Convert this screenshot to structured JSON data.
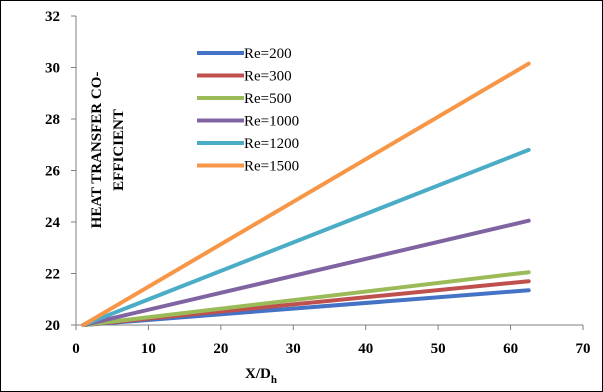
{
  "chart_data": {
    "type": "line",
    "title": "",
    "xlabel": "X/D",
    "xlabel_sub": "h",
    "ylabel_line1": "HEAT TRANSFER CO-",
    "ylabel_line2": "EFFICIENT",
    "xlim": [
      0,
      70
    ],
    "ylim": [
      20,
      32
    ],
    "x_ticks": [
      0,
      10,
      20,
      30,
      40,
      50,
      60,
      70
    ],
    "y_ticks": [
      20,
      22,
      24,
      26,
      28,
      30,
      32
    ],
    "x_tick_labels": [
      "0",
      "10",
      "20",
      "30",
      "40",
      "50",
      "60",
      "70"
    ],
    "y_tick_labels": [
      "20",
      "22",
      "24",
      "26",
      "28",
      "30",
      "32"
    ],
    "legend_position": "top-left-inside",
    "grid": false,
    "series": [
      {
        "name": "Re=200",
        "color": "#4472C4",
        "x": [
          1,
          62.5
        ],
        "y": [
          20,
          21.35
        ]
      },
      {
        "name": "Re=300",
        "color": "#C0504D",
        "x": [
          1,
          62.5
        ],
        "y": [
          20,
          21.7
        ]
      },
      {
        "name": "Re=500",
        "color": "#9BBB59",
        "x": [
          1,
          62.5
        ],
        "y": [
          20,
          22.05
        ]
      },
      {
        "name": "Re=1000",
        "color": "#8064A2",
        "x": [
          1,
          62.5
        ],
        "y": [
          20,
          24.05
        ]
      },
      {
        "name": "Re=1200",
        "color": "#4BACC6",
        "x": [
          1,
          62.5
        ],
        "y": [
          20,
          26.8
        ]
      },
      {
        "name": "Re=1500",
        "color": "#F79646",
        "x": [
          1,
          62.5
        ],
        "y": [
          20,
          30.15
        ]
      }
    ]
  }
}
